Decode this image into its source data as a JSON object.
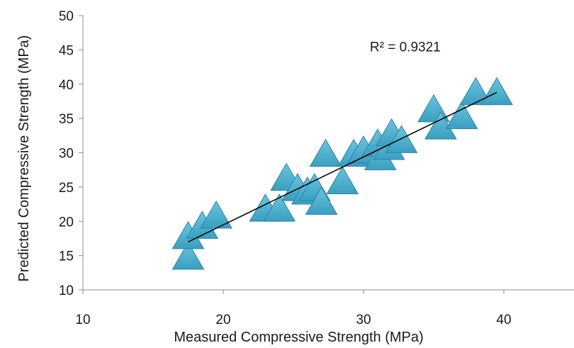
{
  "chart_data": {
    "type": "scatter",
    "title": "",
    "xlabel": "Measured Compressive Strength (MPa)",
    "ylabel": "Predicted Compressive Strength (MPa)",
    "xlim": [
      10,
      45
    ],
    "ylim": [
      10,
      50
    ],
    "x_ticks": [
      "10",
      "20",
      "30",
      "40"
    ],
    "y_ticks": [
      "10",
      "15",
      "20",
      "25",
      "30",
      "35",
      "40",
      "45",
      "50"
    ],
    "grid": false,
    "legend": "none",
    "marker": "triangle",
    "marker_color": "#3a9fc0",
    "series": [
      {
        "points": [
          {
            "x": 17.5,
            "y": 14.5
          },
          {
            "x": 17.5,
            "y": 17.5
          },
          {
            "x": 18.5,
            "y": 19.0
          },
          {
            "x": 19.5,
            "y": 20.5
          },
          {
            "x": 23.0,
            "y": 21.5
          },
          {
            "x": 24.0,
            "y": 21.5
          },
          {
            "x": 24.5,
            "y": 26.0
          },
          {
            "x": 25.3,
            "y": 24.5
          },
          {
            "x": 26.0,
            "y": 24.0
          },
          {
            "x": 26.5,
            "y": 24.5
          },
          {
            "x": 27.0,
            "y": 22.5
          },
          {
            "x": 27.3,
            "y": 29.5
          },
          {
            "x": 28.5,
            "y": 25.5
          },
          {
            "x": 29.3,
            "y": 29.5
          },
          {
            "x": 30.0,
            "y": 30.0
          },
          {
            "x": 31.0,
            "y": 31.0
          },
          {
            "x": 31.2,
            "y": 29.0
          },
          {
            "x": 31.8,
            "y": 30.5
          },
          {
            "x": 32.0,
            "y": 32.5
          },
          {
            "x": 32.7,
            "y": 31.5
          },
          {
            "x": 35.0,
            "y": 36.0
          },
          {
            "x": 35.5,
            "y": 33.5
          },
          {
            "x": 37.0,
            "y": 35.0
          },
          {
            "x": 38.0,
            "y": 38.5
          },
          {
            "x": 39.5,
            "y": 38.5
          }
        ]
      }
    ],
    "trendline": {
      "x": [
        17.5,
        39.5
      ],
      "y": [
        17.0,
        38.8
      ],
      "color": "#000000"
    },
    "annotation": {
      "text": "R² = 0.9321",
      "x": 35.5,
      "y": 45
    }
  }
}
